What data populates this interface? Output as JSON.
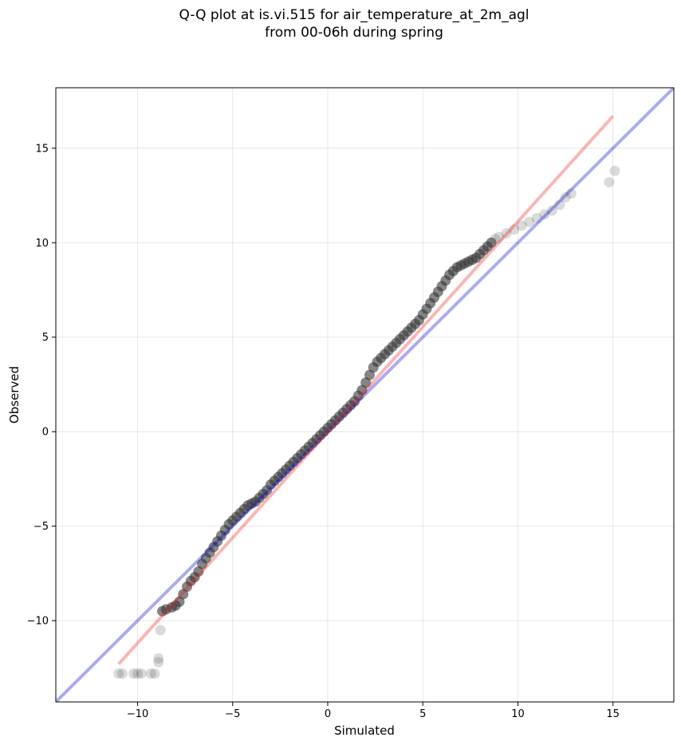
{
  "chart_data": {
    "type": "scatter",
    "title_line1": "Q-Q plot at is.vi.515 for air_temperature_at_2m_agl",
    "title_line2": "from 00-06h during spring",
    "xlabel": "Simulated",
    "ylabel": "Observed",
    "xlim": [
      -14.3,
      18.2
    ],
    "ylim": [
      -14.3,
      18.2
    ],
    "xticks": [
      -10,
      -5,
      0,
      5,
      10,
      15
    ],
    "yticks": [
      -10,
      -5,
      0,
      5,
      10,
      15
    ],
    "xtick_labels": [
      "−10",
      "−5",
      "0",
      "5",
      "10",
      "15"
    ],
    "ytick_labels": [
      "−10",
      "−5",
      "0",
      "5",
      "10",
      "15"
    ],
    "grid": true,
    "lines": [
      {
        "role": "identity",
        "color": "#0000dd",
        "points": [
          [
            -14.3,
            -14.3
          ],
          [
            18.2,
            18.2
          ]
        ]
      },
      {
        "role": "fit",
        "color": "#ee2222",
        "points": [
          [
            -11.0,
            -12.3
          ],
          [
            15.0,
            16.7
          ]
        ]
      }
    ],
    "points_x": [
      -11.0,
      -10.8,
      -10.2,
      -10.0,
      -9.8,
      -9.3,
      -9.1,
      -8.9,
      -8.9,
      -8.8,
      -8.7,
      -8.5,
      -8.2,
      -8.0,
      -7.8,
      -7.6,
      -7.4,
      -7.2,
      -7.0,
      -6.8,
      -6.6,
      -6.4,
      -6.2,
      -6.0,
      -5.8,
      -5.6,
      -5.4,
      -5.2,
      -5.0,
      -4.8,
      -4.6,
      -4.4,
      -4.2,
      -4.0,
      -3.8,
      -3.6,
      -3.4,
      -3.2,
      -3.0,
      -2.8,
      -2.6,
      -2.4,
      -2.2,
      -2.0,
      -1.8,
      -1.6,
      -1.4,
      -1.2,
      -1.0,
      -0.8,
      -0.6,
      -0.4,
      -0.2,
      0.0,
      0.2,
      0.4,
      0.6,
      0.8,
      1.0,
      1.2,
      1.4,
      1.6,
      1.8,
      2.0,
      2.2,
      2.4,
      2.6,
      2.8,
      3.0,
      3.2,
      3.4,
      3.6,
      3.8,
      4.0,
      4.2,
      4.4,
      4.6,
      4.8,
      5.0,
      5.2,
      5.4,
      5.6,
      5.8,
      6.0,
      6.2,
      6.4,
      6.6,
      6.8,
      7.0,
      7.2,
      7.4,
      7.6,
      7.8,
      8.0,
      8.2,
      8.4,
      8.6,
      8.8,
      9.0,
      9.4,
      9.8,
      10.2,
      10.6,
      11.0,
      11.4,
      11.8,
      12.2,
      12.5,
      12.8,
      14.8,
      15.1
    ],
    "points_y": [
      -12.8,
      -12.8,
      -12.8,
      -12.8,
      -12.8,
      -12.8,
      -12.8,
      -12.0,
      -12.2,
      -10.5,
      -9.5,
      -9.4,
      -9.3,
      -9.2,
      -9.0,
      -8.6,
      -8.2,
      -7.9,
      -7.7,
      -7.4,
      -7.0,
      -6.7,
      -6.4,
      -6.1,
      -5.8,
      -5.5,
      -5.2,
      -4.9,
      -4.7,
      -4.5,
      -4.3,
      -4.1,
      -3.9,
      -3.8,
      -3.7,
      -3.5,
      -3.3,
      -3.1,
      -2.8,
      -2.6,
      -2.4,
      -2.2,
      -2.0,
      -1.8,
      -1.6,
      -1.4,
      -1.2,
      -1.0,
      -0.8,
      -0.6,
      -0.4,
      -0.2,
      0.0,
      0.2,
      0.4,
      0.6,
      0.8,
      1.0,
      1.2,
      1.4,
      1.6,
      1.9,
      2.2,
      2.6,
      3.0,
      3.4,
      3.7,
      3.9,
      4.1,
      4.3,
      4.5,
      4.7,
      4.9,
      5.1,
      5.3,
      5.5,
      5.7,
      5.9,
      6.2,
      6.5,
      6.8,
      7.1,
      7.4,
      7.7,
      8.0,
      8.3,
      8.5,
      8.7,
      8.8,
      8.9,
      9.0,
      9.1,
      9.2,
      9.4,
      9.6,
      9.8,
      10.0,
      10.2,
      10.3,
      10.5,
      10.7,
      10.9,
      11.1,
      11.3,
      11.5,
      11.7,
      12.0,
      12.4,
      12.6,
      13.2,
      13.8
    ],
    "colors": {
      "points": "#333333",
      "identity": "#0000dd",
      "fit": "#ee2222",
      "grid": "#cccccc"
    }
  }
}
